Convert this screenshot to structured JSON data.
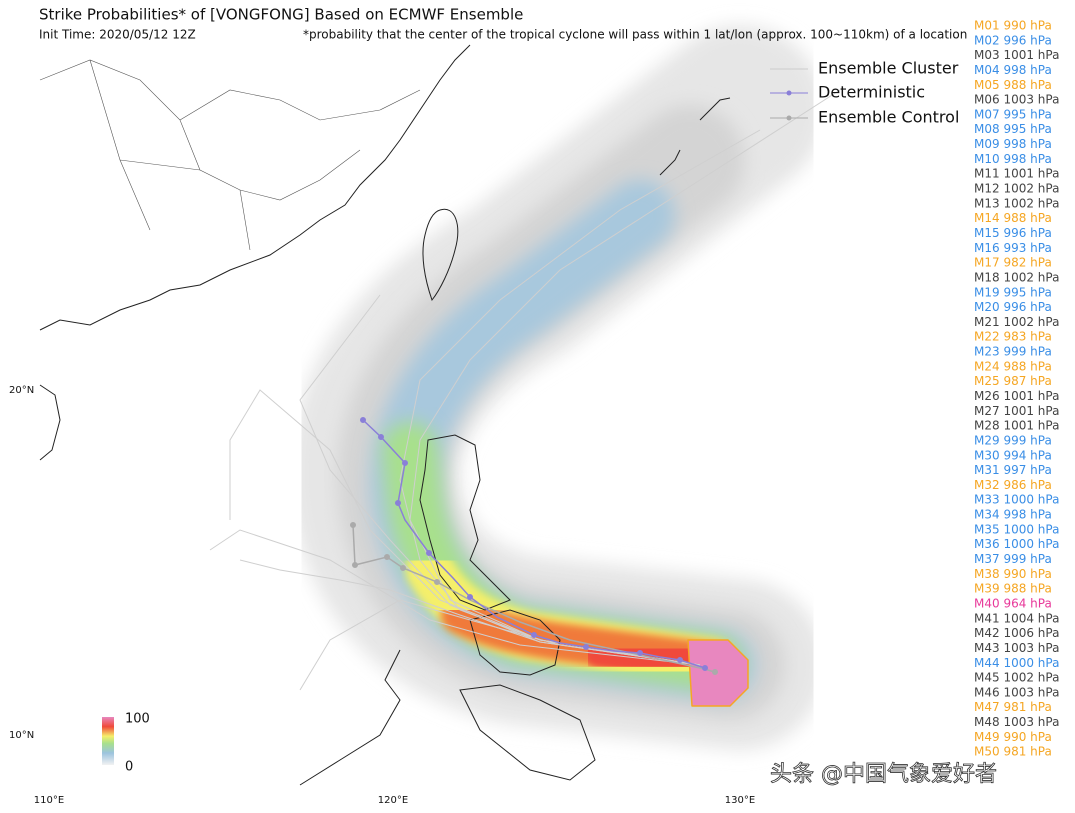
{
  "header": {
    "title": "Strike Probabilities* of [VONGFONG] Based on ECMWF Ensemble",
    "init_time": "Init Time: 2020/05/12 12Z",
    "footnote": "*probability that the center of the tropical cyclone will pass within 1 lat/lon (approx. 100~110km) of a location"
  },
  "legend": [
    "Ensemble Cluster",
    "Deterministic",
    "Ensemble Control"
  ],
  "colorbar": {
    "max_label": "100",
    "min_label": "0"
  },
  "axes": {
    "lat_labels": [
      "20°N",
      "10°N"
    ],
    "lon_labels": [
      "110°E",
      "120°E",
      "130°E"
    ]
  },
  "members": [
    {
      "label": "M01 990 hPa",
      "color": "#f5a623"
    },
    {
      "label": "M02 996 hPa",
      "color": "#3a8ee6"
    },
    {
      "label": "M03 1001 hPa",
      "color": "#444444"
    },
    {
      "label": "M04 998 hPa",
      "color": "#3a8ee6"
    },
    {
      "label": "M05 988 hPa",
      "color": "#f5a623"
    },
    {
      "label": "M06 1003 hPa",
      "color": "#444444"
    },
    {
      "label": "M07 995 hPa",
      "color": "#3a8ee6"
    },
    {
      "label": "M08 995 hPa",
      "color": "#3a8ee6"
    },
    {
      "label": "M09 998 hPa",
      "color": "#3a8ee6"
    },
    {
      "label": "M10 998 hPa",
      "color": "#3a8ee6"
    },
    {
      "label": "M11 1001 hPa",
      "color": "#444444"
    },
    {
      "label": "M12 1002 hPa",
      "color": "#444444"
    },
    {
      "label": "M13 1002 hPa",
      "color": "#444444"
    },
    {
      "label": "M14 988 hPa",
      "color": "#f5a623"
    },
    {
      "label": "M15 996 hPa",
      "color": "#3a8ee6"
    },
    {
      "label": "M16 993 hPa",
      "color": "#3a8ee6"
    },
    {
      "label": "M17 982 hPa",
      "color": "#f5a623"
    },
    {
      "label": "M18 1002 hPa",
      "color": "#444444"
    },
    {
      "label": "M19 995 hPa",
      "color": "#3a8ee6"
    },
    {
      "label": "M20 996 hPa",
      "color": "#3a8ee6"
    },
    {
      "label": "M21 1002 hPa",
      "color": "#444444"
    },
    {
      "label": "M22 983 hPa",
      "color": "#f5a623"
    },
    {
      "label": "M23 999 hPa",
      "color": "#3a8ee6"
    },
    {
      "label": "M24 988 hPa",
      "color": "#f5a623"
    },
    {
      "label": "M25 987 hPa",
      "color": "#f5a623"
    },
    {
      "label": "M26 1001 hPa",
      "color": "#444444"
    },
    {
      "label": "M27 1001 hPa",
      "color": "#444444"
    },
    {
      "label": "M28 1001 hPa",
      "color": "#444444"
    },
    {
      "label": "M29 999 hPa",
      "color": "#3a8ee6"
    },
    {
      "label": "M30 994 hPa",
      "color": "#3a8ee6"
    },
    {
      "label": "M31 997 hPa",
      "color": "#3a8ee6"
    },
    {
      "label": "M32 986 hPa",
      "color": "#f5a623"
    },
    {
      "label": "M33 1000 hPa",
      "color": "#3a8ee6"
    },
    {
      "label": "M34 998 hPa",
      "color": "#3a8ee6"
    },
    {
      "label": "M35 1000 hPa",
      "color": "#3a8ee6"
    },
    {
      "label": "M36 1000 hPa",
      "color": "#3a8ee6"
    },
    {
      "label": "M37 999 hPa",
      "color": "#3a8ee6"
    },
    {
      "label": "M38 990 hPa",
      "color": "#f5a623"
    },
    {
      "label": "M39 988 hPa",
      "color": "#f5a623"
    },
    {
      "label": "M40 964 hPa",
      "color": "#e8399a"
    },
    {
      "label": "M41 1004 hPa",
      "color": "#444444"
    },
    {
      "label": "M42 1006 hPa",
      "color": "#444444"
    },
    {
      "label": "M43 1003 hPa",
      "color": "#444444"
    },
    {
      "label": "M44 1000 hPa",
      "color": "#3a8ee6"
    },
    {
      "label": "M45 1002 hPa",
      "color": "#444444"
    },
    {
      "label": "M46 1003 hPa",
      "color": "#444444"
    },
    {
      "label": "M47 981 hPa",
      "color": "#f5a623"
    },
    {
      "label": "M48 1003 hPa",
      "color": "#444444"
    },
    {
      "label": "M49 990 hPa",
      "color": "#f5a623"
    },
    {
      "label": "M50 981 hPa",
      "color": "#f5a623"
    }
  ],
  "watermark": "头条 @中国气象爱好者"
}
